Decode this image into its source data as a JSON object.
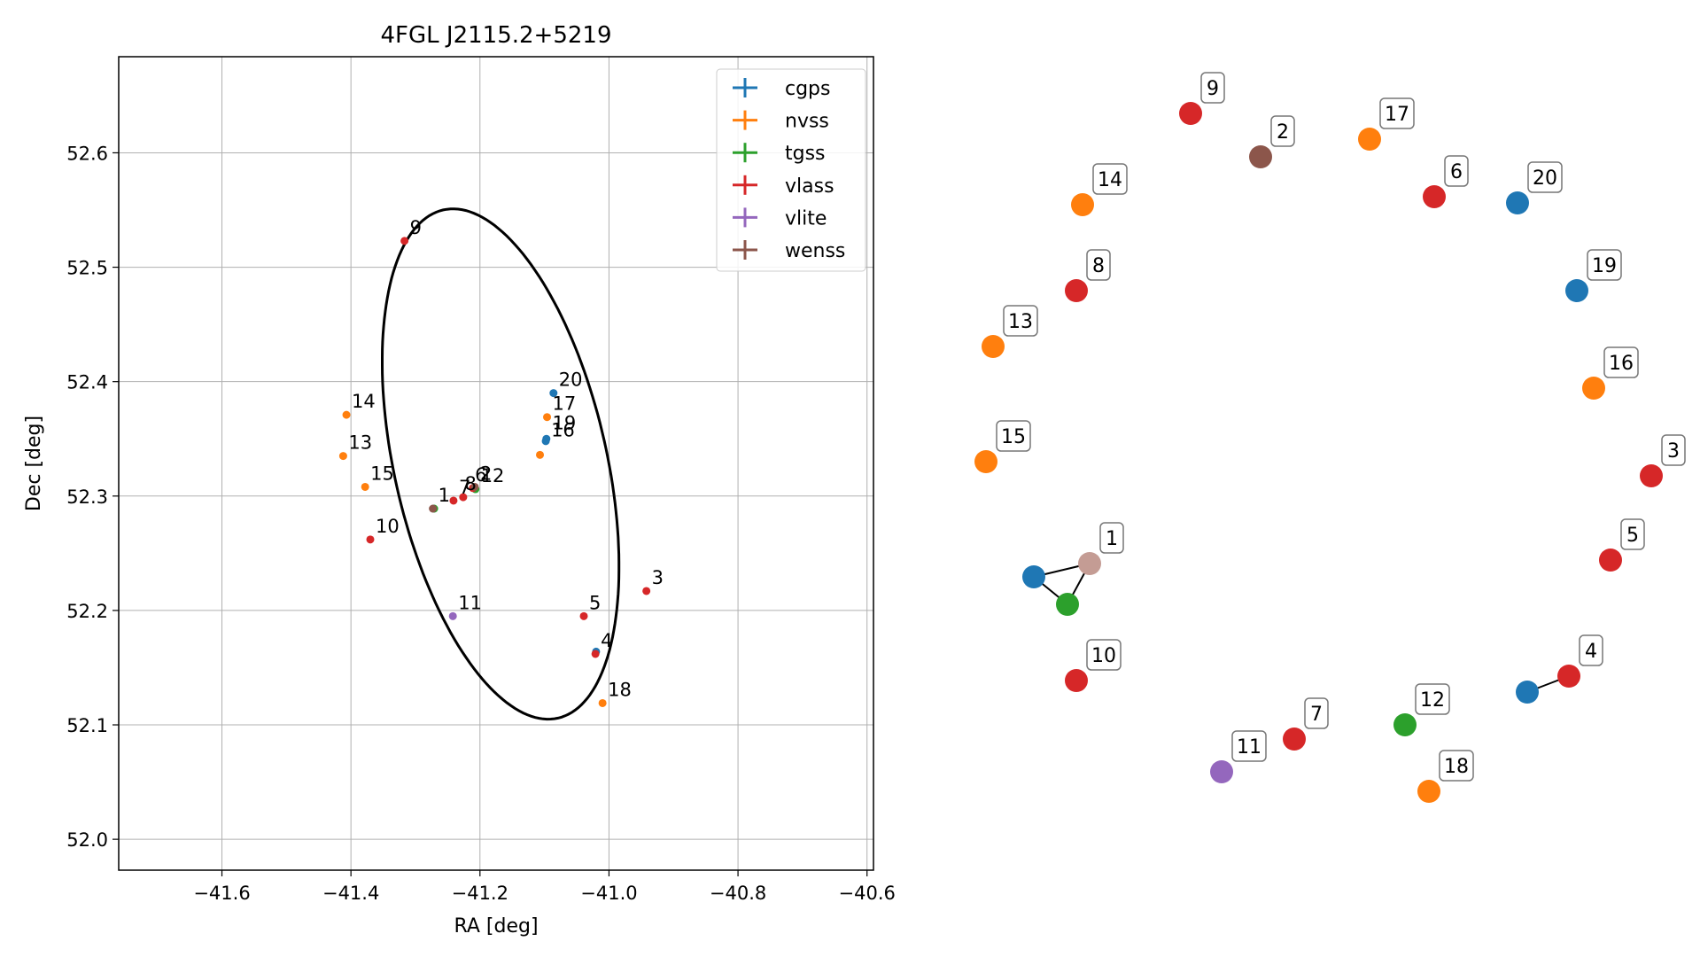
{
  "chart_data": [
    {
      "type": "scatter",
      "title": "4FGL J2115.2+5219",
      "xlabel": "RA [deg]",
      "ylabel": "Dec [deg]",
      "xlim": [
        -41.76,
        -40.59
      ],
      "ylim": [
        51.973,
        52.684
      ],
      "xticks": [
        -41.6,
        -41.4,
        -41.2,
        -41.0,
        -40.8,
        -40.6
      ],
      "yticks": [
        52.0,
        52.1,
        52.2,
        52.3,
        52.4,
        52.5,
        52.6
      ],
      "xtick_labels": [
        "−41.6",
        "−41.4",
        "−41.2",
        "−41.0",
        "−40.8",
        "−40.6"
      ],
      "ytick_labels": [
        "52.0",
        "52.1",
        "52.2",
        "52.3",
        "52.4",
        "52.5",
        "52.6"
      ],
      "grid": true,
      "legend_position": "top-right",
      "ellipse": {
        "center_ra": -41.168,
        "center_dec": 52.328,
        "semi_major_deg": 0.245,
        "semi_minor_deg": 0.153,
        "angle_deg": -58
      },
      "series": [
        {
          "name": "cgps",
          "color": "#1f77b4",
          "points": [
            {
              "id": "1",
              "ra": -41.272,
              "dec": 52.289
            },
            {
              "id": "4",
              "ra": -41.02,
              "dec": 52.164
            },
            {
              "id": "16",
              "ra": -41.098,
              "dec": 52.348
            },
            {
              "id": "19",
              "ra": -41.097,
              "dec": 52.35
            },
            {
              "id": "20",
              "ra": -41.086,
              "dec": 52.39
            }
          ]
        },
        {
          "name": "nvss",
          "color": "#ff7f0e",
          "points": [
            {
              "id": "13",
              "ra": -41.412,
              "dec": 52.335
            },
            {
              "id": "14",
              "ra": -41.407,
              "dec": 52.371
            },
            {
              "id": "15",
              "ra": -41.378,
              "dec": 52.308
            },
            {
              "id": "16",
              "ra": -41.107,
              "dec": 52.336
            },
            {
              "id": "17",
              "ra": -41.096,
              "dec": 52.369
            },
            {
              "id": "18",
              "ra": -41.01,
              "dec": 52.119
            }
          ]
        },
        {
          "name": "tgss",
          "color": "#2ca02c",
          "points": [
            {
              "id": "1",
              "ra": -41.271,
              "dec": 52.289
            },
            {
              "id": "12",
              "ra": -41.207,
              "dec": 52.306
            }
          ]
        },
        {
          "name": "vlass",
          "color": "#d62728",
          "points": [
            {
              "id": "3",
              "ra": -40.942,
              "dec": 52.217
            },
            {
              "id": "4",
              "ra": -41.021,
              "dec": 52.162
            },
            {
              "id": "5",
              "ra": -41.039,
              "dec": 52.195
            },
            {
              "id": "6",
              "ra": -41.211,
              "dec": 52.307
            },
            {
              "id": "7",
              "ra": -41.241,
              "dec": 52.296
            },
            {
              "id": "8",
              "ra": -41.226,
              "dec": 52.299
            },
            {
              "id": "9",
              "ra": -41.317,
              "dec": 52.523
            },
            {
              "id": "10",
              "ra": -41.37,
              "dec": 52.262
            }
          ]
        },
        {
          "name": "vlite",
          "color": "#9467bd",
          "points": [
            {
              "id": "11",
              "ra": -41.242,
              "dec": 52.195
            }
          ]
        },
        {
          "name": "wenss",
          "color": "#8c564b",
          "points": [
            {
              "id": "1",
              "ra": -41.273,
              "dec": 52.289
            },
            {
              "id": "2",
              "ra": -41.208,
              "dec": 52.308
            }
          ]
        }
      ],
      "labels": [
        {
          "text": "1",
          "ra": -41.273,
          "dec": 52.289
        },
        {
          "text": "2",
          "ra": -41.208,
          "dec": 52.308
        },
        {
          "text": "3",
          "ra": -40.942,
          "dec": 52.217
        },
        {
          "text": "4",
          "ra": -41.021,
          "dec": 52.162
        },
        {
          "text": "5",
          "ra": -41.039,
          "dec": 52.195
        },
        {
          "text": "6",
          "ra": -41.216,
          "dec": 52.307
        },
        {
          "text": "7",
          "ra": -41.241,
          "dec": 52.296
        },
        {
          "text": "8",
          "ra": -41.232,
          "dec": 52.299
        },
        {
          "text": "9",
          "ra": -41.317,
          "dec": 52.523
        },
        {
          "text": "10",
          "ra": -41.37,
          "dec": 52.262
        },
        {
          "text": "11",
          "ra": -41.242,
          "dec": 52.195
        },
        {
          "text": "12",
          "ra": -41.207,
          "dec": 52.306
        },
        {
          "text": "13",
          "ra": -41.412,
          "dec": 52.335
        },
        {
          "text": "14",
          "ra": -41.407,
          "dec": 52.371
        },
        {
          "text": "15",
          "ra": -41.378,
          "dec": 52.308
        },
        {
          "text": "16",
          "ra": -41.098,
          "dec": 52.346
        },
        {
          "text": "17",
          "ra": -41.096,
          "dec": 52.369
        },
        {
          "text": "18",
          "ra": -41.01,
          "dec": 52.119
        },
        {
          "text": "19",
          "ra": -41.096,
          "dec": 52.352
        },
        {
          "text": "20",
          "ra": -41.086,
          "dec": 52.39
        }
      ]
    },
    {
      "type": "scatter",
      "title": "",
      "description_note": "",
      "nodes": [
        {
          "label": "9",
          "catalog": "vlass",
          "color": "#d62728"
        },
        {
          "label": "2",
          "catalog": "wenss",
          "color": "#8c564b"
        },
        {
          "label": "17",
          "catalog": "nvss",
          "color": "#ff7f0e"
        },
        {
          "label": "6",
          "catalog": "vlass",
          "color": "#d62728"
        },
        {
          "label": "20",
          "catalog": "cgps",
          "color": "#1f77b4"
        },
        {
          "label": "14",
          "catalog": "nvss",
          "color": "#ff7f0e"
        },
        {
          "label": "8",
          "catalog": "vlass",
          "color": "#d62728"
        },
        {
          "label": "19",
          "catalog": "cgps",
          "color": "#1f77b4"
        },
        {
          "label": "13",
          "catalog": "nvss",
          "color": "#ff7f0e"
        },
        {
          "label": "16",
          "catalog": "nvss",
          "color": "#ff7f0e"
        },
        {
          "label": "15",
          "catalog": "nvss",
          "color": "#ff7f0e"
        },
        {
          "label": "3",
          "catalog": "vlass",
          "color": "#d62728"
        },
        {
          "label": "5",
          "catalog": "vlass",
          "color": "#d62728"
        },
        {
          "label": "1",
          "catalog": "wenss",
          "color": "#c49c94"
        },
        {
          "label": "",
          "catalog": "cgps",
          "color": "#1f77b4"
        },
        {
          "label": "",
          "catalog": "tgss",
          "color": "#2ca02c"
        },
        {
          "label": "10",
          "catalog": "vlass",
          "color": "#d62728"
        },
        {
          "label": "4",
          "catalog": "vlass",
          "color": "#d62728"
        },
        {
          "label": "",
          "catalog": "cgps",
          "color": "#1f77b4"
        },
        {
          "label": "12",
          "catalog": "tgss",
          "color": "#2ca02c"
        },
        {
          "label": "7",
          "catalog": "vlass",
          "color": "#d62728"
        },
        {
          "label": "11",
          "catalog": "vlite",
          "color": "#9467bd"
        },
        {
          "label": "18",
          "catalog": "nvss",
          "color": "#ff7f0e"
        }
      ],
      "edges": [
        [
          "1",
          "cgps-1"
        ],
        [
          "1",
          "tgss-1"
        ],
        [
          "cgps-1",
          "tgss-1"
        ],
        [
          "4",
          "cgps-4"
        ]
      ]
    }
  ]
}
